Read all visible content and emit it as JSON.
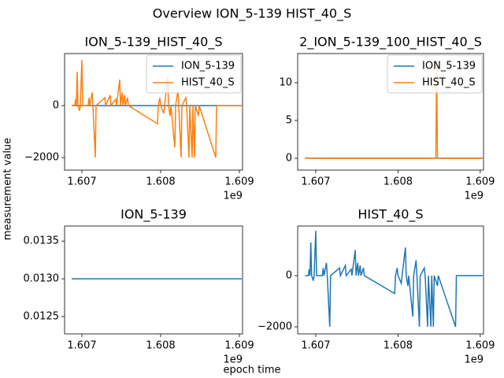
{
  "title": "Overview ION_5-139 HIST_40_S",
  "xlabel": "epoch time",
  "ylabel": "measurement value",
  "chart_data": [
    {
      "type": "line",
      "title": "ION_5-139_HIST_40_S",
      "legend": "upper right",
      "x_offset_label": "1e9",
      "xlim": [
        1606780000,
        1609040000
      ],
      "ylim": [
        -2480,
        2000
      ],
      "xticks": [
        {
          "value": 1607000000,
          "label": "1.607"
        },
        {
          "value": 1608000000,
          "label": "1.608"
        },
        {
          "value": 1609000000,
          "label": "1.609"
        }
      ],
      "yticks": [
        {
          "value": -2000,
          "label": "−2000"
        },
        0
      ],
      "series": [
        {
          "name": "ION_5-139",
          "color": "#1f77b4",
          "x": [
            1606870000,
            1609030000
          ],
          "values": [
            0.013,
            0.013
          ]
        },
        {
          "name": "HIST_40_S",
          "color": "#ff7f0e",
          "x": [
            1606870000,
            1606910000,
            1606920000,
            1606930000,
            1606940000,
            1606950000,
            1606970000,
            1606980000,
            1607000000,
            1607010000,
            1607080000,
            1607090000,
            1607100000,
            1607130000,
            1607140000,
            1607170000,
            1607180000,
            1607290000,
            1607300000,
            1607360000,
            1607370000,
            1607430000,
            1607440000,
            1607480000,
            1607490000,
            1607510000,
            1607520000,
            1607540000,
            1607550000,
            1607580000,
            1607590000,
            1607960000,
            1607970000,
            1607990000,
            1608000000,
            1608040000,
            1608050000,
            1608090000,
            1608100000,
            1608120000,
            1608130000,
            1608180000,
            1608190000,
            1608220000,
            1608230000,
            1608260000,
            1608270000,
            1608320000,
            1608330000,
            1608360000,
            1608370000,
            1608400000,
            1608410000,
            1608430000,
            1608440000,
            1608480000,
            1608490000,
            1608700000,
            1608710000,
            1609030000
          ],
          "values": [
            0,
            0,
            250,
            0,
            1300,
            0,
            -200,
            0,
            1750,
            0,
            0,
            300,
            0,
            500,
            0,
            -2000,
            0,
            300,
            0,
            400,
            0,
            250,
            0,
            1000,
            0,
            500,
            0,
            400,
            0,
            300,
            0,
            -700,
            0,
            300,
            0,
            -300,
            0,
            1100,
            0,
            -400,
            0,
            -1600,
            0,
            600,
            0,
            -2000,
            0,
            300,
            0,
            -2000,
            0,
            -2000,
            0,
            -2000,
            0,
            -400,
            0,
            -2000,
            0,
            0
          ]
        }
      ]
    },
    {
      "type": "line",
      "title": "2_ION_5-139_100_HIST_40_S",
      "legend": "upper right",
      "x_offset_label": "1e9",
      "xlim": [
        1606780000,
        1609040000
      ],
      "ylim": [
        -1.56,
        13.85
      ],
      "xticks": [
        {
          "value": 1607000000,
          "label": "1.607"
        },
        {
          "value": 1608000000,
          "label": "1.608"
        },
        {
          "value": 1609000000,
          "label": "1.609"
        }
      ],
      "yticks": [
        0,
        5,
        10
      ],
      "series": [
        {
          "name": "ION_5-139",
          "color": "#1f77b4",
          "x": [
            1606870000,
            1609030000
          ],
          "values": [
            0.013,
            0.013
          ]
        },
        {
          "name": "HIST_40_S",
          "color": "#ff7f0e",
          "x": [
            1606870000,
            1608460000,
            1608470000,
            1608480000,
            1609030000
          ],
          "values": [
            0,
            0,
            13,
            0,
            0
          ]
        }
      ]
    },
    {
      "type": "line",
      "title": "ION_5-139",
      "x_offset_label": "1e9",
      "xlim": [
        1606780000,
        1609040000
      ],
      "ylim": [
        0.01227,
        0.0137
      ],
      "xticks": [
        {
          "value": 1607000000,
          "label": "1.607"
        },
        {
          "value": 1608000000,
          "label": "1.608"
        },
        {
          "value": 1609000000,
          "label": "1.609"
        }
      ],
      "yticks": [
        0.0125,
        {
          "value": 0.013,
          "label": "0.0130"
        },
        0.0135
      ],
      "series": [
        {
          "color": "#1f77b4",
          "x": [
            1606870000,
            1609030000
          ],
          "values": [
            0.013,
            0.013
          ]
        }
      ]
    },
    {
      "type": "line",
      "title": "HIST_40_S",
      "x_offset_label": "1e9",
      "xlim": [
        1606780000,
        1609040000
      ],
      "ylim": [
        -2277,
        1940
      ],
      "xticks": [
        {
          "value": 1607000000,
          "label": "1.607"
        },
        {
          "value": 1608000000,
          "label": "1.608"
        },
        {
          "value": 1609000000,
          "label": "1.609"
        }
      ],
      "yticks": [
        {
          "value": -2000,
          "label": "−2000"
        },
        0
      ],
      "series": [
        {
          "color": "#1f77b4",
          "x": [
            1606870000,
            1606910000,
            1606920000,
            1606930000,
            1606940000,
            1606950000,
            1606970000,
            1606980000,
            1607000000,
            1607010000,
            1607080000,
            1607090000,
            1607100000,
            1607130000,
            1607140000,
            1607170000,
            1607180000,
            1607290000,
            1607300000,
            1607360000,
            1607370000,
            1607430000,
            1607440000,
            1607480000,
            1607490000,
            1607510000,
            1607520000,
            1607540000,
            1607550000,
            1607580000,
            1607590000,
            1607960000,
            1607970000,
            1607990000,
            1608000000,
            1608040000,
            1608050000,
            1608090000,
            1608100000,
            1608120000,
            1608130000,
            1608180000,
            1608190000,
            1608220000,
            1608230000,
            1608260000,
            1608270000,
            1608320000,
            1608330000,
            1608360000,
            1608370000,
            1608400000,
            1608410000,
            1608430000,
            1608440000,
            1608480000,
            1608490000,
            1608700000,
            1608710000,
            1609030000
          ],
          "values": [
            0,
            0,
            250,
            0,
            1300,
            0,
            -200,
            0,
            1750,
            0,
            0,
            300,
            0,
            500,
            0,
            -2000,
            0,
            300,
            0,
            400,
            0,
            250,
            0,
            1000,
            0,
            500,
            0,
            400,
            0,
            300,
            0,
            -700,
            0,
            300,
            0,
            -300,
            0,
            1100,
            0,
            -400,
            0,
            -1600,
            0,
            600,
            0,
            -2000,
            0,
            300,
            0,
            -2000,
            0,
            -2000,
            0,
            -2000,
            0,
            -400,
            0,
            -2000,
            0,
            0
          ]
        }
      ]
    }
  ]
}
